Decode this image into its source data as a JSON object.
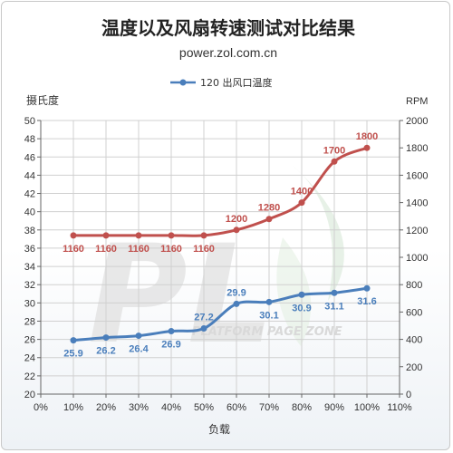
{
  "title": "温度以及风扇转速测试对比结果",
  "subtitle": "power.zol.com.cn",
  "watermark_text": "PLATFORM PAGE ZONE",
  "colors": {
    "temperature": "#4a7ebb",
    "rpm": "#c0504d",
    "grid": "#d0d0d0",
    "axis": "#666666"
  },
  "chart_data": {
    "type": "line",
    "x": [
      "10%",
      "20%",
      "30%",
      "40%",
      "50%",
      "60%",
      "70%",
      "80%",
      "90%",
      "100%"
    ],
    "x_ticks": [
      "0%",
      "10%",
      "20%",
      "30%",
      "40%",
      "50%",
      "60%",
      "70%",
      "80%",
      "90%",
      "100%",
      "110%"
    ],
    "xlabel": "负载",
    "ylabel": "摄氏度",
    "y2label": "RPM",
    "ylim": [
      20,
      50
    ],
    "y_ticks": [
      20,
      22,
      24,
      26,
      28,
      30,
      32,
      34,
      36,
      38,
      40,
      42,
      44,
      46,
      48,
      50
    ],
    "y2lim": [
      0,
      2000
    ],
    "y2_ticks": [
      0,
      200,
      400,
      600,
      800,
      1000,
      1200,
      1400,
      1600,
      1800,
      2000
    ],
    "grid": true,
    "legend_position": "top-center",
    "series": [
      {
        "name": "120 出风口温度",
        "axis": "left",
        "x": [
          10,
          20,
          30,
          40,
          50,
          60,
          70,
          80,
          90,
          100
        ],
        "values": [
          25.9,
          26.2,
          26.4,
          26.9,
          27.2,
          29.9,
          30.1,
          30.9,
          31.1,
          31.6
        ],
        "labels": [
          "25.9",
          "26.2",
          "26.4",
          "26.9",
          "27.2",
          "29.9",
          "30.1",
          "30.9",
          "31.1",
          "31.6"
        ]
      },
      {
        "axis": "right",
        "x": [
          10,
          20,
          30,
          40,
          50,
          60,
          70,
          80,
          90,
          100
        ],
        "values": [
          1160,
          1160,
          1160,
          1160,
          1160,
          1200,
          1280,
          1400,
          1700,
          1800
        ],
        "labels": [
          "1160",
          "1160",
          "1160",
          "1160",
          "1160",
          "1200",
          "1280",
          "1400",
          "1700",
          "1800"
        ]
      }
    ]
  }
}
